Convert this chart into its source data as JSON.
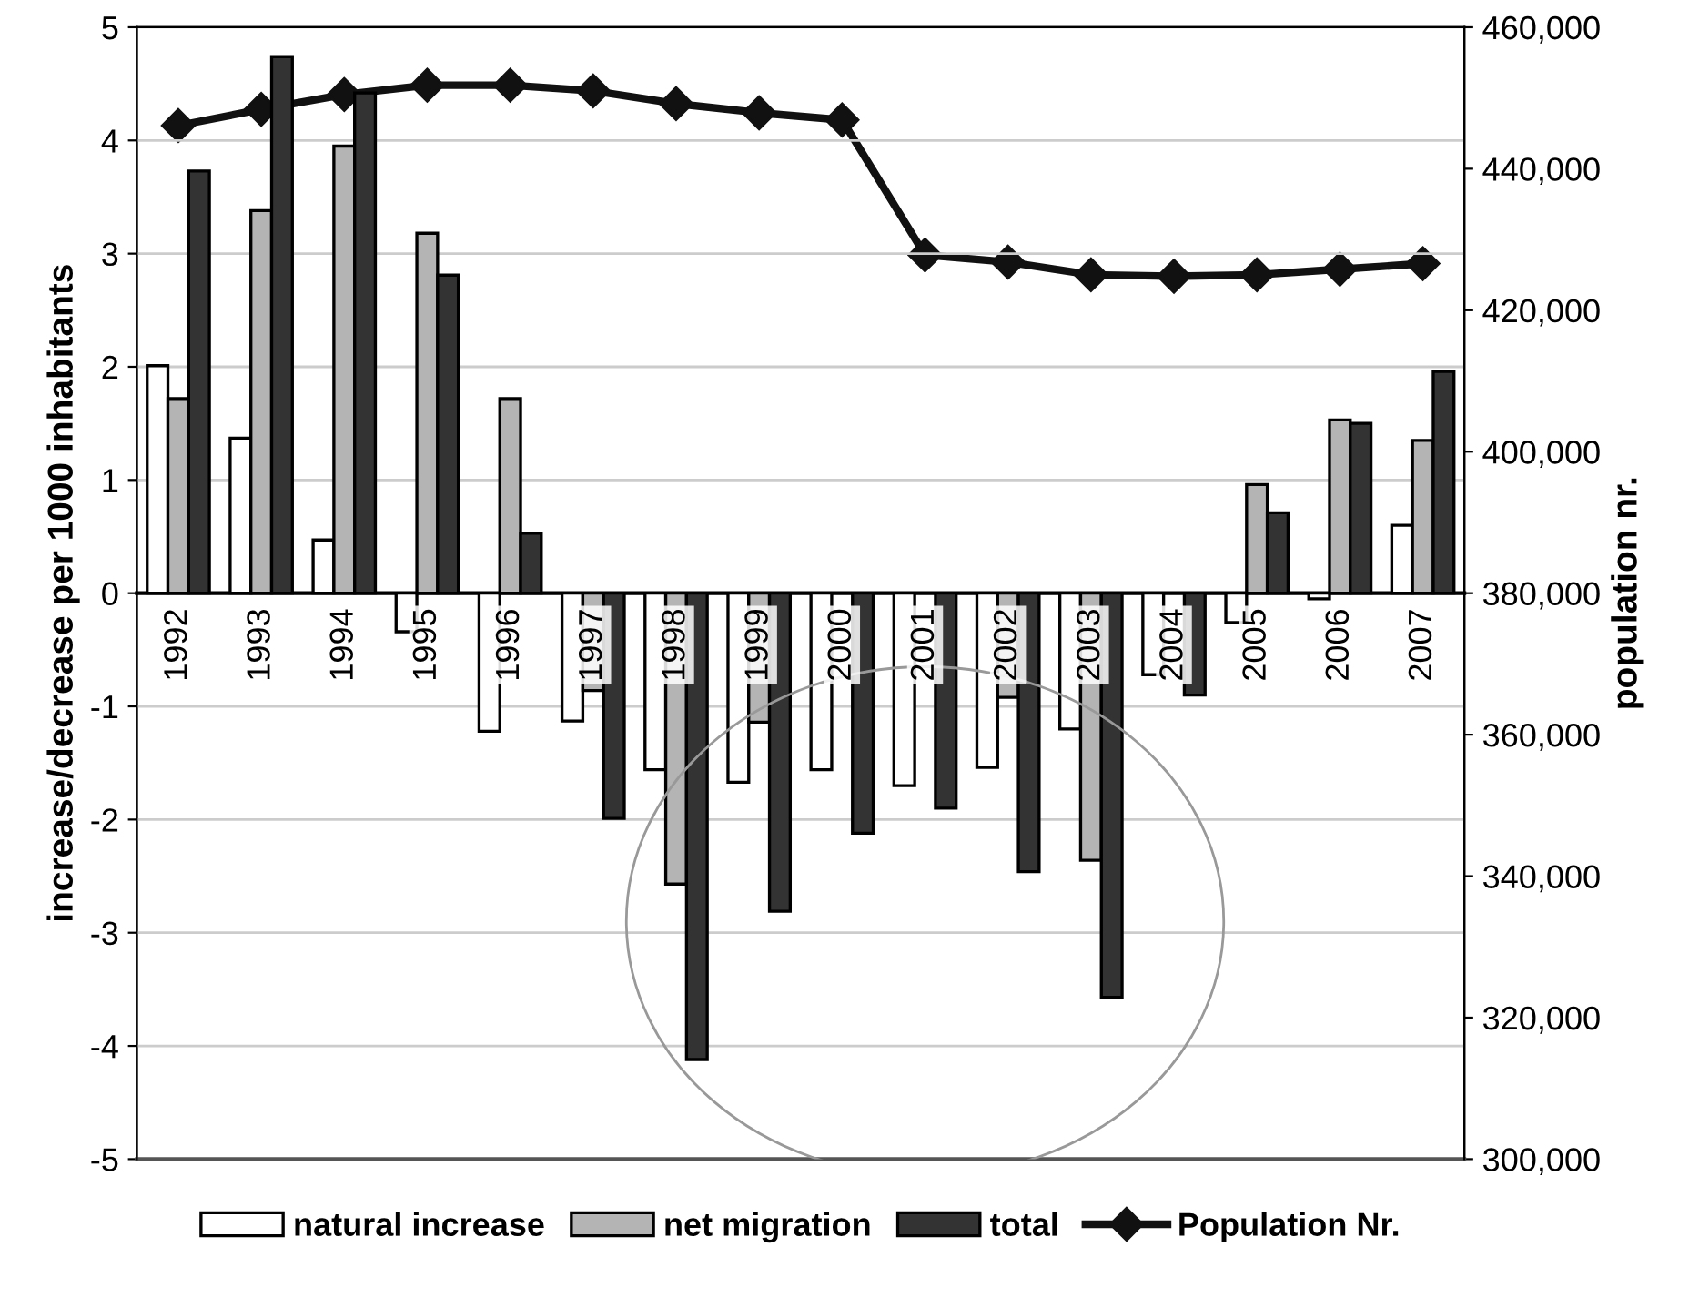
{
  "chart_data": {
    "type": "bar",
    "ylabel": "increase/decrease per 1000 inhabitants",
    "y2label": "population nr.",
    "categories": [
      "1992",
      "1993",
      "1994",
      "1995",
      "1996",
      "1997",
      "1998",
      "1999",
      "2000",
      "2001",
      "2002",
      "2003",
      "2004",
      "2005",
      "2006",
      "2007"
    ],
    "series": [
      {
        "name": "natural increase",
        "color": "#ffffff",
        "values": [
          2.01,
          1.37,
          0.47,
          -0.34,
          -1.22,
          -1.13,
          -1.56,
          -1.67,
          -1.56,
          -1.7,
          -1.54,
          -1.2,
          -0.72,
          -0.26,
          -0.05,
          0.6
        ]
      },
      {
        "name": "net migration",
        "color": "#b4b4b4",
        "values": [
          1.72,
          3.38,
          3.95,
          3.18,
          1.72,
          -0.86,
          -2.57,
          -1.14,
          null,
          null,
          -0.92,
          -2.36,
          null,
          0.96,
          1.53,
          1.35
        ]
      },
      {
        "name": "total",
        "color": "#333333",
        "values": [
          3.73,
          4.74,
          4.42,
          2.81,
          0.53,
          -1.99,
          -4.12,
          -2.81,
          -2.12,
          -1.9,
          -2.46,
          -3.57,
          -0.9,
          0.71,
          1.5,
          1.96
        ]
      },
      {
        "name": "Population Nr.",
        "type": "line",
        "axis": "y2",
        "color": "#111111",
        "marker": "diamond",
        "line_style": "solid",
        "values": [
          446100,
          448400,
          450500,
          451800,
          451800,
          451000,
          449200,
          447900,
          446900,
          427800,
          426800,
          425000,
          424800,
          425000,
          425800,
          426600
        ]
      }
    ],
    "ylim": [
      -5,
      5
    ],
    "yticks": [
      -5,
      -4,
      -3,
      -2,
      -1,
      0,
      1,
      2,
      3,
      4,
      5
    ],
    "y2lim": [
      300000,
      460000
    ],
    "y2ticks": [
      {
        "value": 300000,
        "label": "300,000"
      },
      {
        "value": 320000,
        "label": "320,000"
      },
      {
        "value": 340000,
        "label": "340,000"
      },
      {
        "value": 360000,
        "label": "360,000"
      },
      {
        "value": 380000,
        "label": "380,000"
      },
      {
        "value": 400000,
        "label": "400,000"
      },
      {
        "value": 420000,
        "label": "420,000"
      },
      {
        "value": 440000,
        "label": "440,000"
      },
      {
        "value": 460000,
        "label": "460,000"
      }
    ],
    "grid": "y",
    "legend": "bottom"
  }
}
